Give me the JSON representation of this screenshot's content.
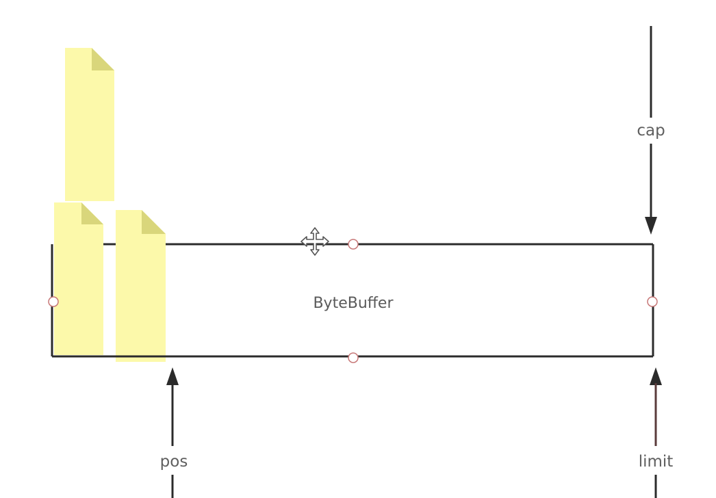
{
  "diagram": {
    "buffer_label": "ByteBuffer",
    "pointers": {
      "cap": "cap",
      "pos": "pos",
      "limit": "limit"
    },
    "colors": {
      "line": "#2b2b2b",
      "note_fill": "#fcf9aa",
      "note_fold": "#d9d67b",
      "handle_stroke": "#c77777",
      "limit_line": "#5a3b3b"
    }
  }
}
